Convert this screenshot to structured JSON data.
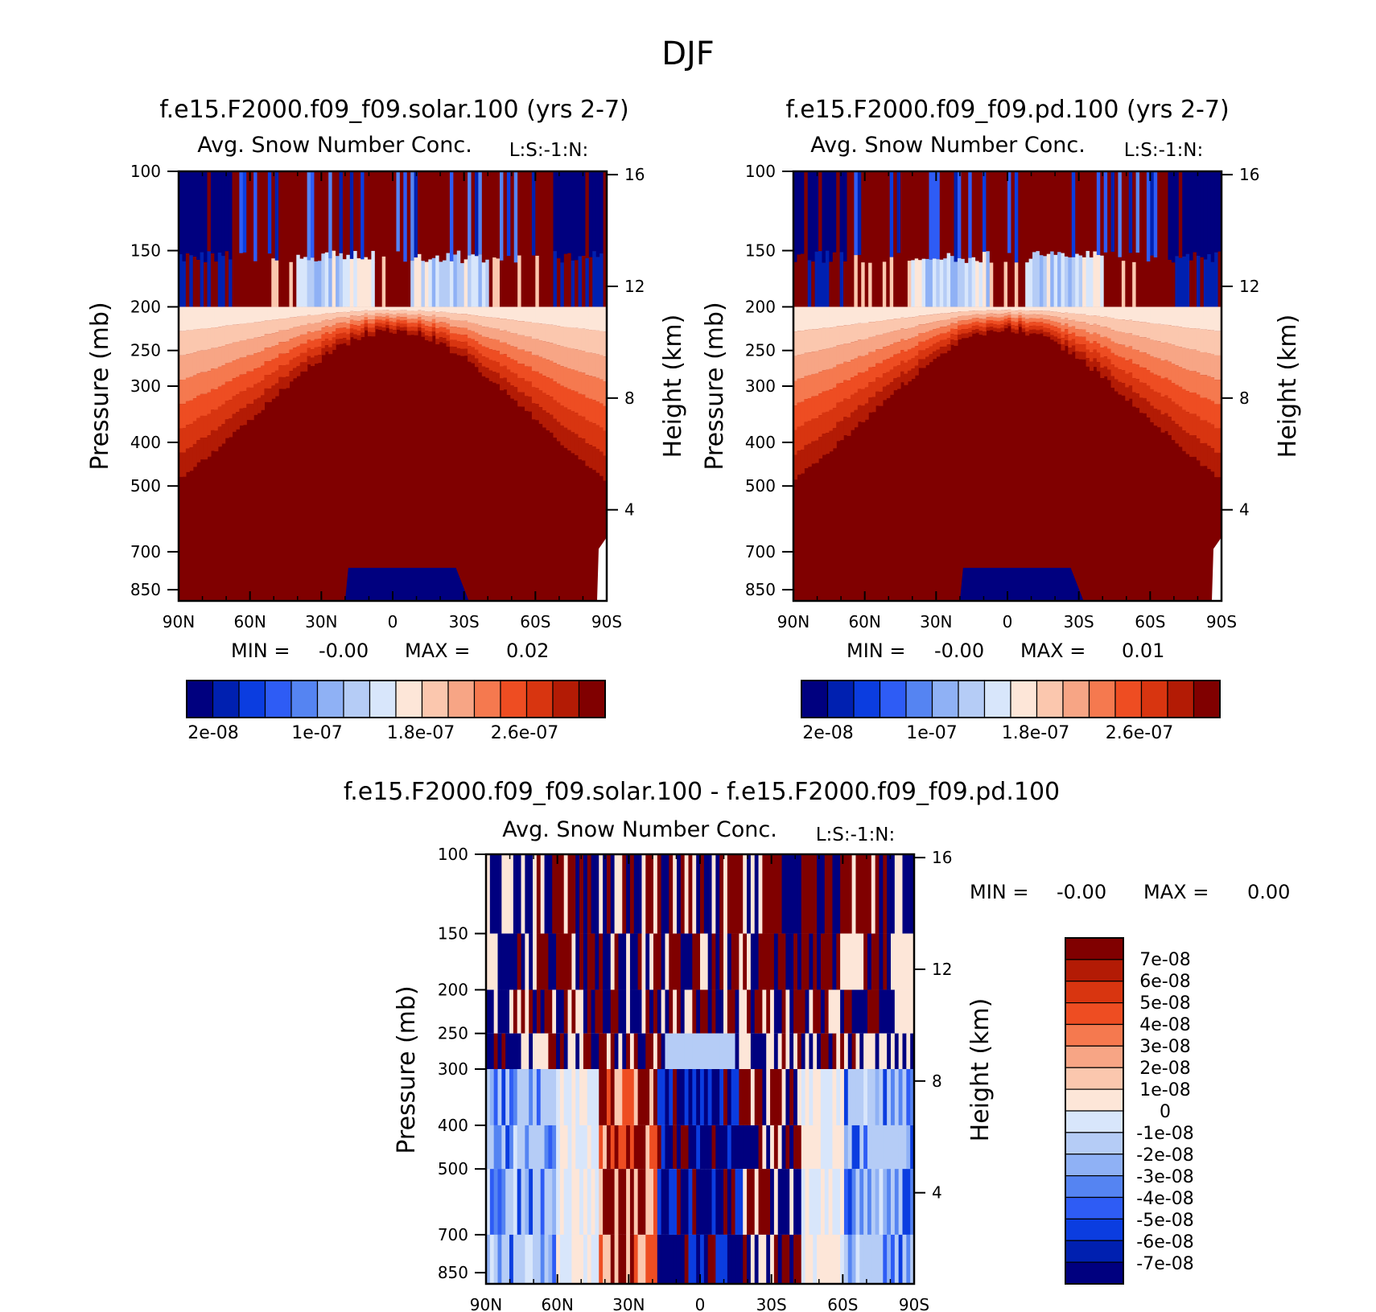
{
  "chart_data": {
    "suptitle": "DJF",
    "panels": [
      {
        "type": "heatmap",
        "title": "f.e15.F2000.f09_f09.solar.100 (yrs 2-7)",
        "subtitle": "Avg. Snow Number Conc.",
        "source_tag": "L:S:-1:N:",
        "ylabel": "Pressure (mb)",
        "ylabel_right": "Height (km)",
        "x_ticks": [
          "90N",
          "60N",
          "30N",
          "0",
          "30S",
          "60S",
          "90S"
        ],
        "y_ticks": [
          100,
          150,
          200,
          250,
          300,
          400,
          500,
          700,
          850
        ],
        "y_right_ticks": [
          16,
          12,
          8,
          4
        ],
        "ylim": [
          100,
          1000
        ],
        "min_label": "MIN =",
        "min_value": "-0.00",
        "max_label": "MAX =",
        "max_value": "0.02",
        "colorbar_labels": [
          "2e-08",
          "1e-07",
          "1.8e-07",
          "2.6e-07"
        ],
        "levels": [
          2e-08,
          4e-08,
          6e-08,
          8e-08,
          1e-07,
          1.2e-07,
          1.4e-07,
          1.6e-07,
          1.8e-07,
          2e-07,
          2.2e-07,
          2.4e-07,
          2.6e-07,
          2.8e-07,
          3e-07
        ]
      },
      {
        "type": "heatmap",
        "title": "f.e15.F2000.f09_f09.pd.100 (yrs 2-7)",
        "subtitle": "Avg. Snow Number Conc.",
        "source_tag": "L:S:-1:N:",
        "ylabel": "Pressure (mb)",
        "ylabel_right": "Height (km)",
        "x_ticks": [
          "90N",
          "60N",
          "30N",
          "0",
          "30S",
          "60S",
          "90S"
        ],
        "y_ticks": [
          100,
          150,
          200,
          250,
          300,
          400,
          500,
          700,
          850
        ],
        "y_right_ticks": [
          16,
          12,
          8,
          4
        ],
        "ylim": [
          100,
          1000
        ],
        "min_label": "MIN =",
        "min_value": "-0.00",
        "max_label": "MAX =",
        "max_value": "0.01",
        "colorbar_labels": [
          "2e-08",
          "1e-07",
          "1.8e-07",
          "2.6e-07"
        ],
        "levels": [
          2e-08,
          4e-08,
          6e-08,
          8e-08,
          1e-07,
          1.2e-07,
          1.4e-07,
          1.6e-07,
          1.8e-07,
          2e-07,
          2.2e-07,
          2.4e-07,
          2.6e-07,
          2.8e-07,
          3e-07
        ]
      },
      {
        "type": "heatmap",
        "title": "f.e15.F2000.f09_f09.solar.100 - f.e15.F2000.f09_f09.pd.100",
        "subtitle": "Avg. Snow Number Conc.",
        "source_tag": "L:S:-1:N:",
        "ylabel": "Pressure (mb)",
        "ylabel_right": "Height (km)",
        "x_ticks": [
          "90N",
          "60N",
          "30N",
          "0",
          "30S",
          "60S",
          "90S"
        ],
        "y_ticks": [
          100,
          150,
          200,
          250,
          300,
          400,
          500,
          700,
          850
        ],
        "y_right_ticks": [
          16,
          12,
          8,
          4
        ],
        "ylim": [
          100,
          1000
        ],
        "min_label": "MIN =",
        "min_value": "-0.00",
        "max_label": "MAX =",
        "max_value": "0.00",
        "colorbar_labels": [
          "7e-08",
          "6e-08",
          "5e-08",
          "4e-08",
          "3e-08",
          "2e-08",
          "1e-08",
          "0",
          "-1e-08",
          "-2e-08",
          "-3e-08",
          "-4e-08",
          "-5e-08",
          "-6e-08",
          "-7e-08"
        ]
      }
    ]
  },
  "colors": {
    "seq": [
      "#00007f",
      "#0020b0",
      "#0b3de0",
      "#2e5cf5",
      "#5584f2",
      "#8fb1f5",
      "#b5ccf6",
      "#d8e6fb",
      "#fde6d8",
      "#fbc7ae",
      "#f7a585",
      "#f5794f",
      "#ee4d22",
      "#d83510",
      "#b31b05",
      "#800000"
    ],
    "div": [
      "#800000",
      "#b31b05",
      "#d83510",
      "#ee4d22",
      "#f5794f",
      "#f7a585",
      "#fbc7ae",
      "#fde6d8",
      "#d8e6fb",
      "#b5ccf6",
      "#8fb1f5",
      "#5584f2",
      "#2e5cf5",
      "#0b3de0",
      "#0020b0",
      "#00007f"
    ]
  }
}
